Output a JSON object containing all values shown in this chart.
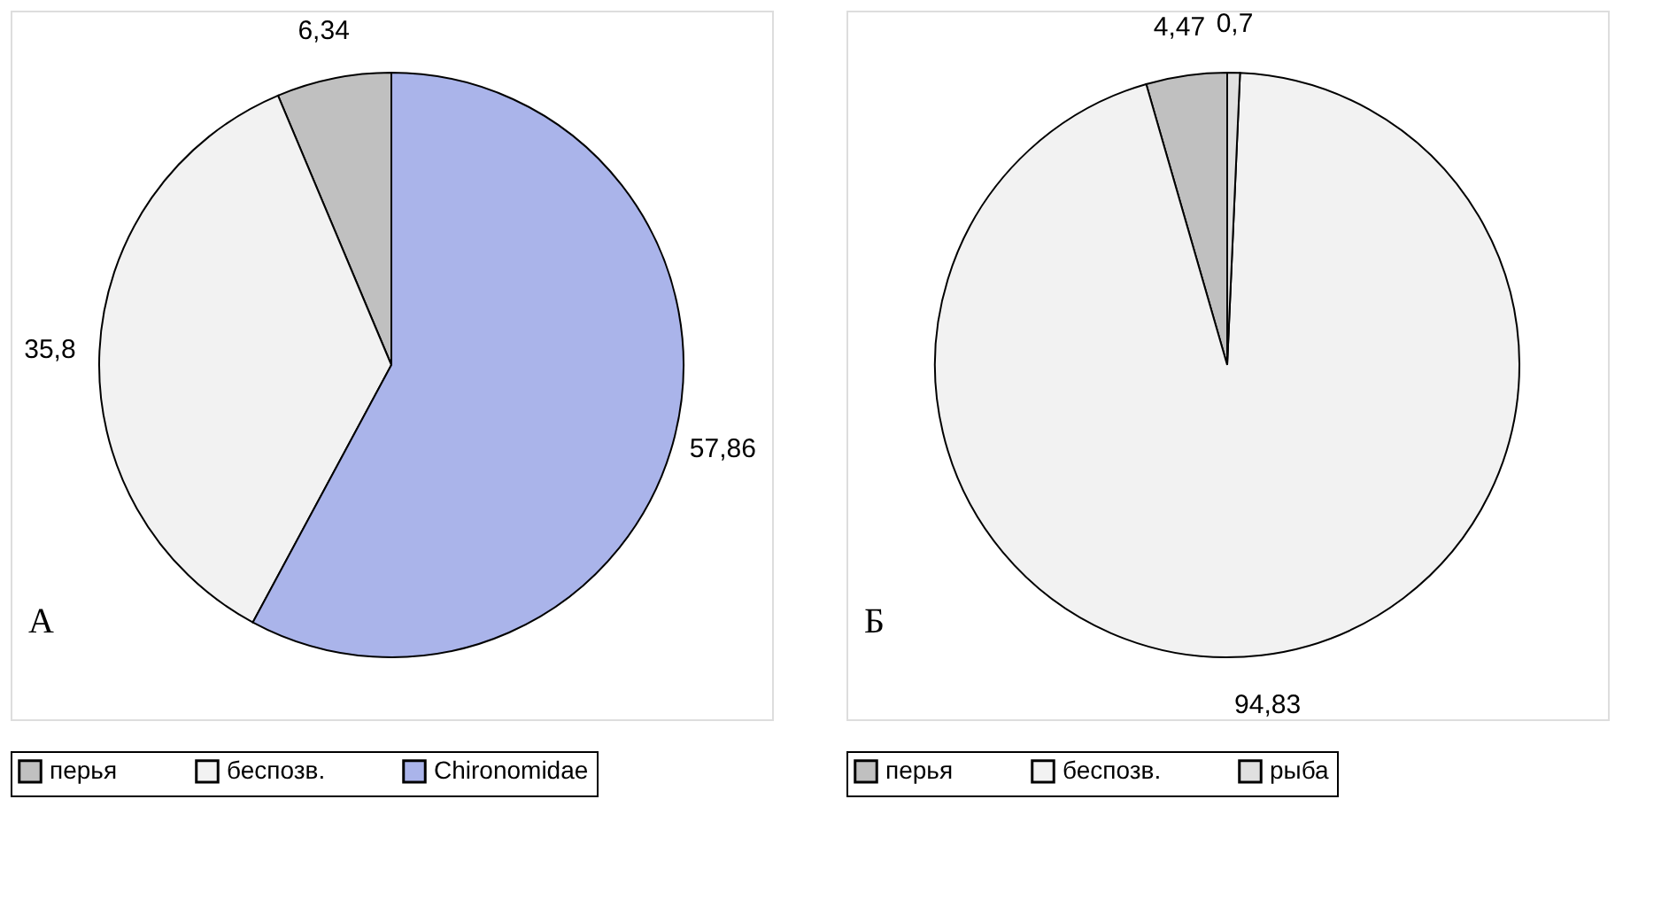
{
  "chart_data": [
    {
      "type": "pie",
      "categories": [
        "перья",
        "беспозв.",
        "Chironomidae"
      ],
      "values": [
        6.34,
        35.8,
        57.86
      ],
      "value_labels": [
        "6,34",
        "35,8",
        "57,86"
      ],
      "colors": [
        "#c0c0c0",
        "#f2f2f2",
        "#aab4ea"
      ],
      "annotations": [
        "А"
      ],
      "legend": "bottom"
    },
    {
      "type": "pie",
      "categories": [
        "перья",
        "беспозв.",
        "рыба"
      ],
      "values": [
        4.47,
        94.83,
        0.7
      ],
      "value_labels": [
        "4,47",
        "94,83",
        "0,7"
      ],
      "colors": [
        "#c0c0c0",
        "#f2f2f2",
        "#e0e0e0"
      ],
      "annotations": [
        "Б"
      ],
      "legend": "bottom"
    }
  ]
}
